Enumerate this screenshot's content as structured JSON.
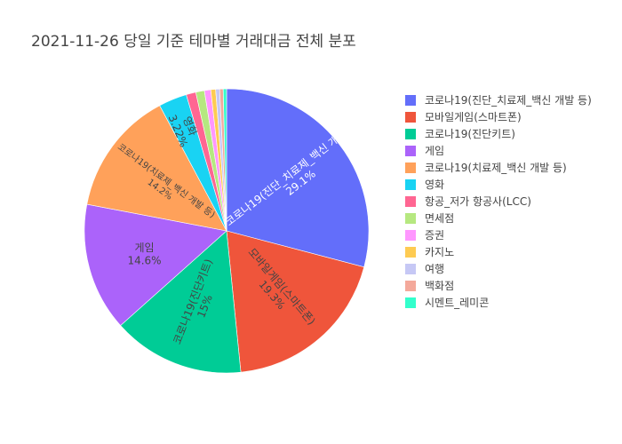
{
  "chart_data": {
    "type": "pie",
    "title": "2021-11-26 당일 기준 테마별 거래대금 전체 분포",
    "legend_position": "right",
    "sort": "descending",
    "direction": "clockwise",
    "start_angle_deg": 90,
    "slices": [
      {
        "label": "코로나19(진단_치료제_백신 개발 등)",
        "value": 29.1,
        "display": "29.1%",
        "color": "#636efa",
        "text_color": "#ffffff",
        "show_label": true
      },
      {
        "label": "모바일게임(스마트폰)",
        "value": 19.3,
        "display": "19.3%",
        "color": "#ef553b",
        "text_color": "#444444",
        "show_label": true
      },
      {
        "label": "코로나19(진단키트)",
        "value": 15.0,
        "display": "15%",
        "color": "#00cc96",
        "text_color": "#444444",
        "show_label": true
      },
      {
        "label": "게임",
        "value": 14.6,
        "display": "14.6%",
        "color": "#ab63fa",
        "text_color": "#444444",
        "show_label": true
      },
      {
        "label": "코로나19(치료제_백신 개발 등)",
        "value": 14.2,
        "display": "14.2%",
        "color": "#ffa15a",
        "text_color": "#444444",
        "show_label": true
      },
      {
        "label": "영화",
        "value": 3.22,
        "display": "3.22%",
        "color": "#19d3f3",
        "text_color": "#444444",
        "show_label": true
      },
      {
        "label": "항공_저가 항공사(LCC)",
        "value": 1.1,
        "display": "1.1%",
        "color": "#ff6692",
        "text_color": "#444444",
        "show_label": false
      },
      {
        "label": "면세점",
        "value": 0.98,
        "display": "0.98%",
        "color": "#b6e880",
        "text_color": "#444444",
        "show_label": false
      },
      {
        "label": "증권",
        "value": 0.72,
        "display": "0.72%",
        "color": "#ff97ff",
        "text_color": "#444444",
        "show_label": false
      },
      {
        "label": "카지노",
        "value": 0.55,
        "display": "0.55%",
        "color": "#fecb52",
        "text_color": "#444444",
        "show_label": false
      },
      {
        "label": "여행",
        "value": 0.45,
        "display": "0.45%",
        "color": "#c6c8f5",
        "text_color": "#444444",
        "show_label": false
      },
      {
        "label": "백화점",
        "value": 0.4,
        "display": "0.4%",
        "color": "#f4a99b",
        "text_color": "#444444",
        "show_label": false
      },
      {
        "label": "시멘트_레미콘",
        "value": 0.38,
        "display": "0.38%",
        "color": "#33ffcc",
        "text_color": "#444444",
        "show_label": false
      }
    ]
  }
}
